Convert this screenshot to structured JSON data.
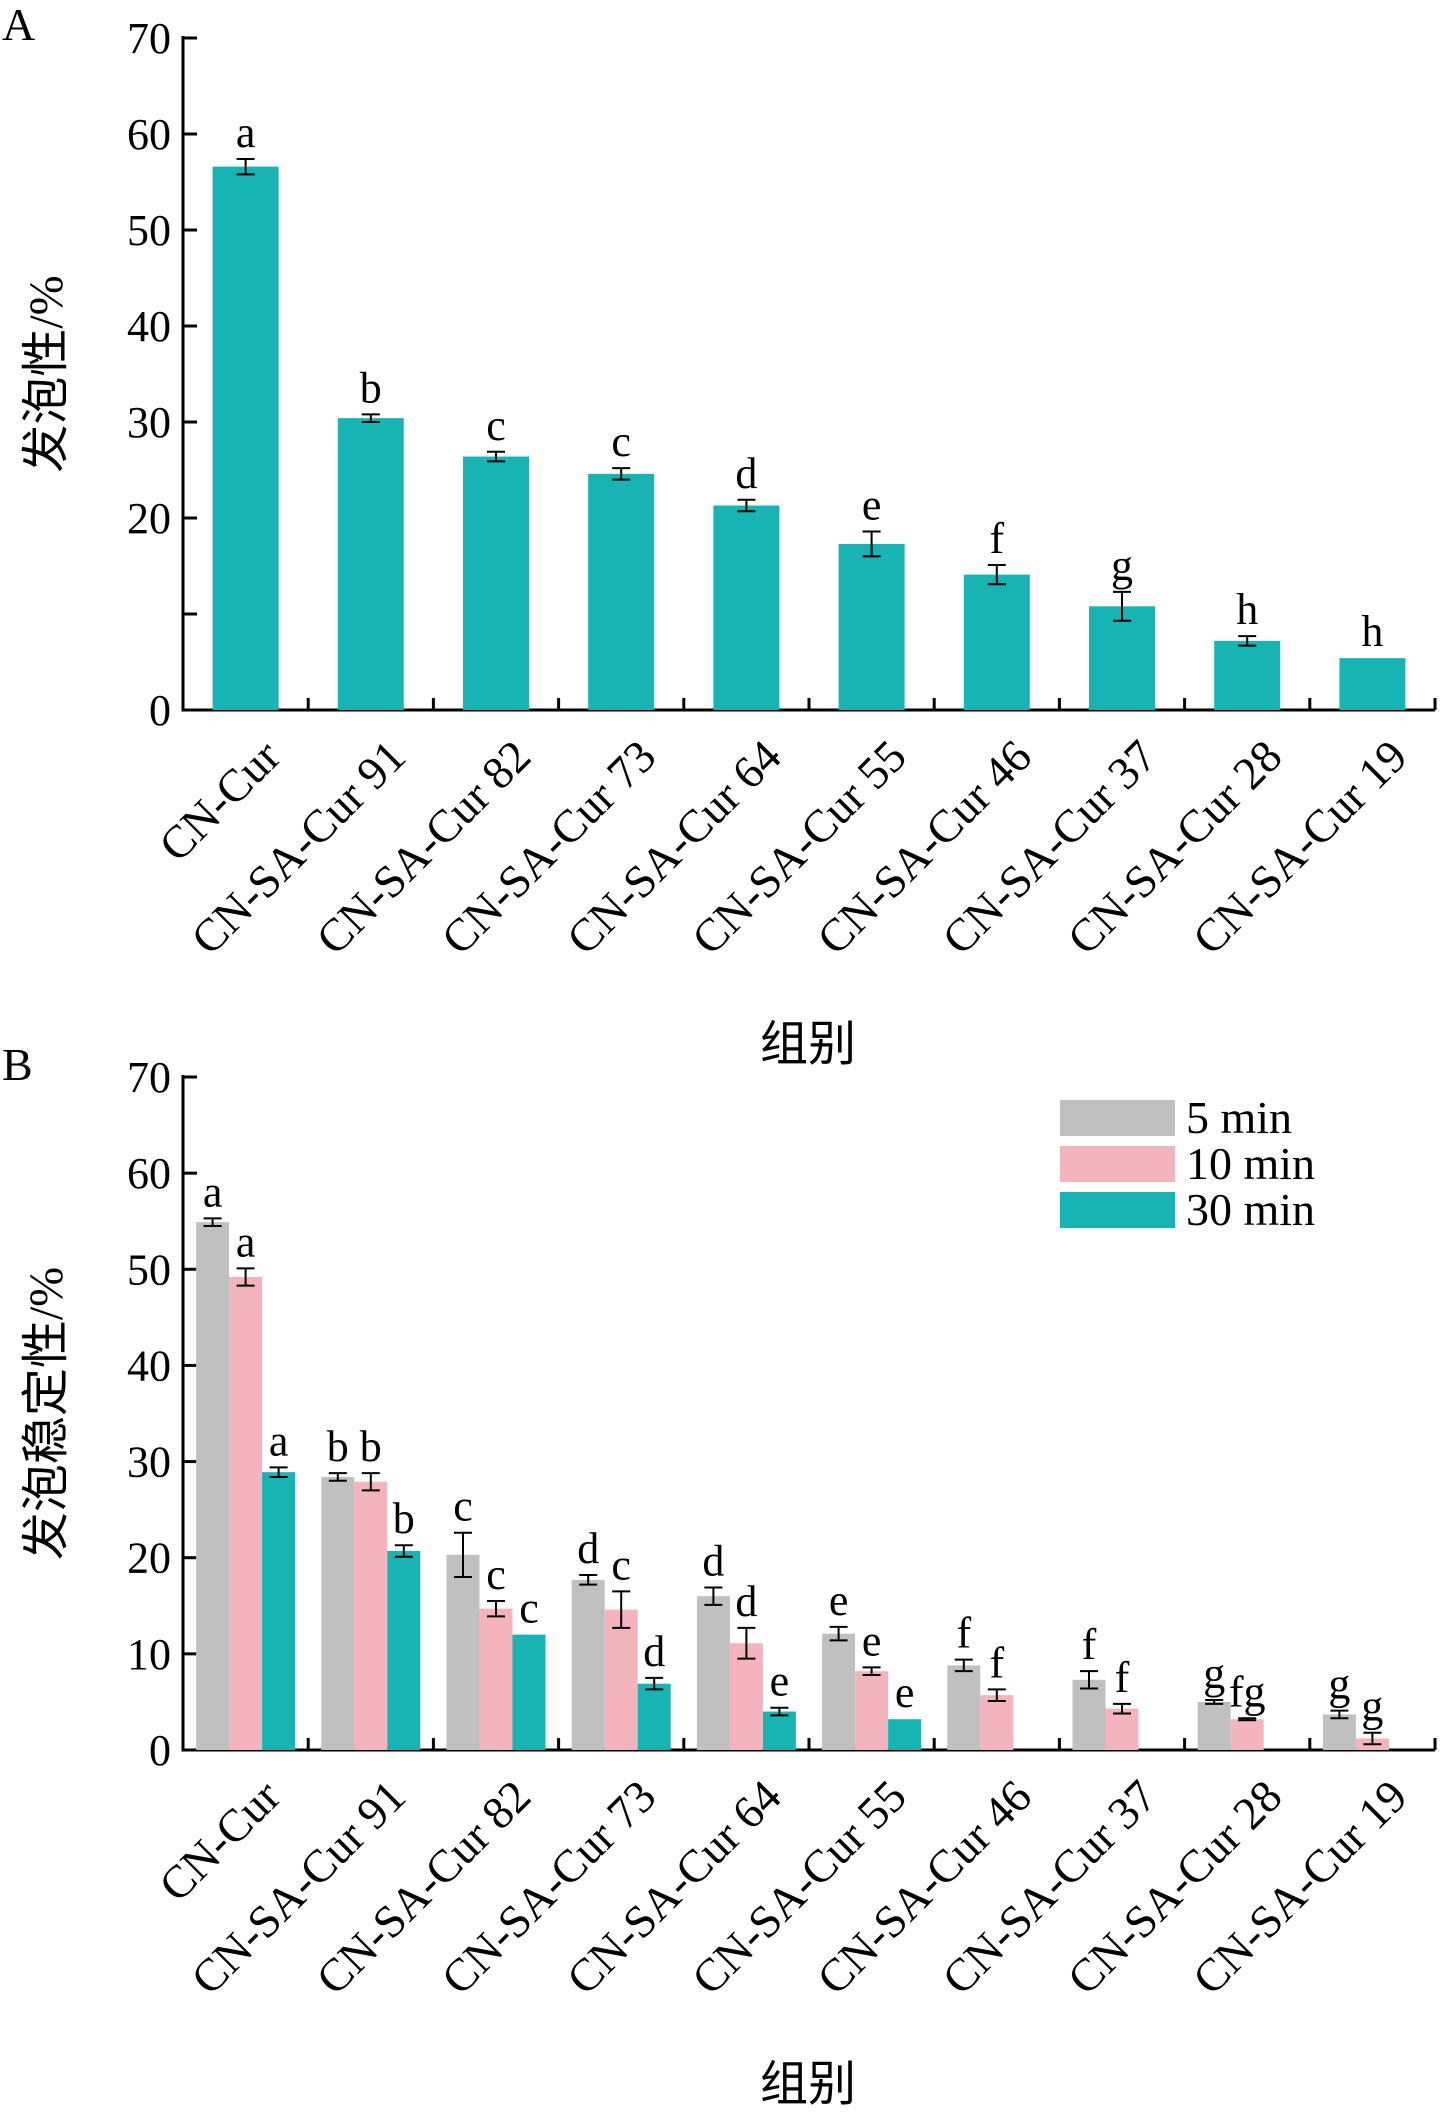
{
  "chart_data": [
    {
      "panel": "A",
      "type": "bar",
      "ylabel": "发泡性/%",
      "xlabel": "组别",
      "ylim": [
        0,
        70
      ],
      "yticks": [
        0,
        10,
        20,
        30,
        40,
        50,
        60,
        70
      ],
      "ytick_labels": [
        "0",
        "",
        "20",
        "30",
        "40",
        "50",
        "60",
        "70"
      ],
      "categories": [
        "CN-Cur",
        "CN-SA-Cur 91",
        "CN-SA-Cur 82",
        "CN-SA-Cur 73",
        "CN-SA-Cur 64",
        "CN-SA-Cur 55",
        "CN-SA-Cur 46",
        "CN-SA-Cur 37",
        "CN-SA-Cur 28",
        "CN-SA-Cur 19"
      ],
      "series": [
        {
          "color": "#18b3b3",
          "values": [
            56.6,
            30.4,
            26.4,
            24.6,
            21.3,
            17.3,
            14.1,
            10.8,
            7.2,
            5.4
          ],
          "errors": [
            0.8,
            0.4,
            0.5,
            0.6,
            0.6,
            1.3,
            1.0,
            1.5,
            0.5,
            0.0
          ],
          "letters": [
            "a",
            "b",
            "c",
            "c",
            "d",
            "e",
            "f",
            "g",
            "h",
            "h"
          ]
        }
      ]
    },
    {
      "panel": "B",
      "type": "bar",
      "ylabel": "发泡稳定性/%",
      "xlabel": "组别",
      "ylim": [
        0,
        70
      ],
      "yticks": [
        0,
        10,
        20,
        30,
        40,
        50,
        60,
        70
      ],
      "ytick_labels": [
        "0",
        "10",
        "20",
        "30",
        "40",
        "50",
        "60",
        "70"
      ],
      "legend_position": "top-right",
      "categories": [
        "CN-Cur",
        "CN-SA-Cur 91",
        "CN-SA-Cur 82",
        "CN-SA-Cur 73",
        "CN-SA-Cur 64",
        "CN-SA-Cur 55",
        "CN-SA-Cur 46",
        "CN-SA-Cur 37",
        "CN-SA-Cur 28",
        "CN-SA-Cur 19"
      ],
      "series": [
        {
          "name": "5 min",
          "color": "#c0c0c0",
          "values": [
            54.9,
            28.4,
            20.3,
            17.7,
            16.0,
            12.1,
            8.8,
            7.3,
            5.0,
            3.7
          ],
          "errors": [
            0.4,
            0.4,
            2.3,
            0.5,
            0.9,
            0.7,
            0.6,
            0.9,
            0.2,
            0.4
          ],
          "letters": [
            "a",
            "b",
            "c",
            "d",
            "d",
            "e",
            "f",
            "f",
            "g",
            "g"
          ]
        },
        {
          "name": "10 min",
          "color": "#f4b4bd",
          "values": [
            49.2,
            27.9,
            14.7,
            14.6,
            11.1,
            8.2,
            5.7,
            4.3,
            3.2,
            1.2
          ],
          "errors": [
            0.9,
            0.9,
            0.8,
            1.9,
            1.6,
            0.4,
            0.6,
            0.5,
            0.1,
            0.6
          ],
          "letters": [
            "a",
            "b",
            "c",
            "c",
            "d",
            "e",
            "f",
            "f",
            "fg",
            "g"
          ]
        },
        {
          "name": "30 min",
          "color": "#18b3b3",
          "values": [
            28.9,
            20.7,
            12.0,
            6.9,
            4.0,
            3.2,
            0,
            0,
            0,
            0
          ],
          "errors": [
            0.5,
            0.6,
            0.0,
            0.6,
            0.4,
            0.0,
            0,
            0,
            0,
            0
          ],
          "letters": [
            "a",
            "b",
            "c",
            "d",
            "e",
            "e",
            "",
            "",
            "",
            ""
          ]
        }
      ]
    }
  ]
}
